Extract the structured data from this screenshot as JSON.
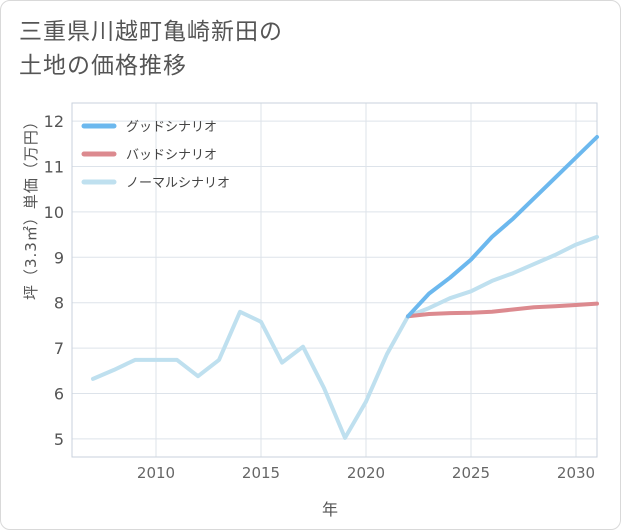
{
  "title_line1": "三重県川越町亀崎新田の",
  "title_line2": "土地の価格推移",
  "chart_data": {
    "type": "line",
    "xlabel": "年",
    "ylabel": "坪（3.3㎡）単価（万円）",
    "xlim": [
      2006,
      2031
    ],
    "ylim": [
      4.6,
      12.4
    ],
    "xticks": [
      2010,
      2015,
      2020,
      2025,
      2030
    ],
    "yticks": [
      5,
      6,
      7,
      8,
      9,
      10,
      11,
      12
    ],
    "grid": true,
    "legend_position": "top-left",
    "series": [
      {
        "name": "グッドシナリオ",
        "color": "#6cb8ee",
        "x": [
          2022,
          2023,
          2024,
          2025,
          2026,
          2027,
          2028,
          2029,
          2030,
          2031
        ],
        "y": [
          7.7,
          8.2,
          8.55,
          8.95,
          9.45,
          9.85,
          10.3,
          10.75,
          11.2,
          11.65
        ]
      },
      {
        "name": "バッドシナリオ",
        "color": "#dc8a8f",
        "x": [
          2022,
          2023,
          2024,
          2025,
          2026,
          2027,
          2028,
          2029,
          2030,
          2031
        ],
        "y": [
          7.7,
          7.75,
          7.77,
          7.78,
          7.8,
          7.85,
          7.9,
          7.92,
          7.95,
          7.98
        ]
      },
      {
        "name": "ノーマルシナリオ",
        "color": "#bfe0ef",
        "x": [
          2007,
          2008,
          2009,
          2010,
          2011,
          2012,
          2013,
          2014,
          2015,
          2016,
          2017,
          2018,
          2019,
          2020,
          2021,
          2022,
          2023,
          2024,
          2025,
          2026,
          2027,
          2028,
          2029,
          2030,
          2031
        ],
        "y": [
          6.32,
          6.52,
          6.74,
          6.74,
          6.74,
          6.38,
          6.74,
          7.8,
          7.58,
          6.68,
          7.03,
          6.12,
          5.02,
          5.82,
          6.87,
          7.7,
          7.88,
          8.1,
          8.25,
          8.48,
          8.65,
          8.85,
          9.05,
          9.28,
          9.45
        ]
      }
    ]
  }
}
